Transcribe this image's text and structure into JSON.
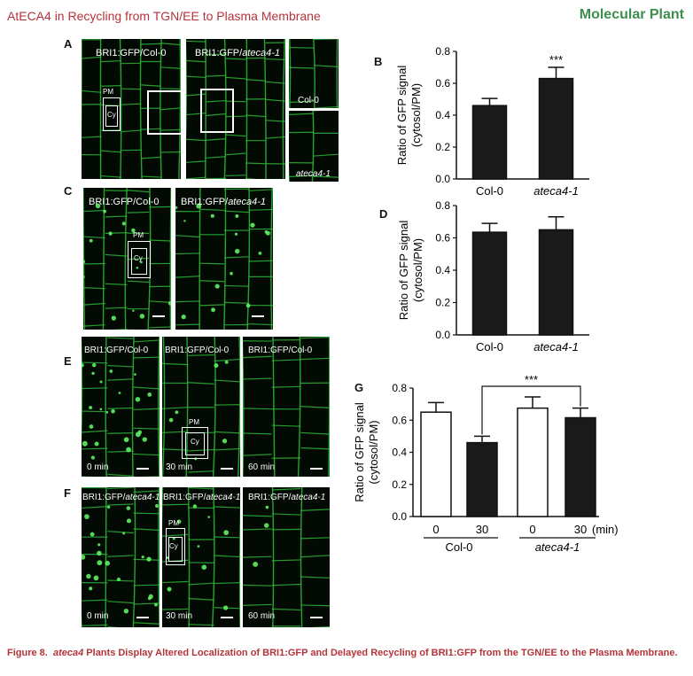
{
  "header": {
    "left": "AtECA4 in Recycling from TGN/EE to Plasma Membrane",
    "right": "Molecular Plant"
  },
  "panels": {
    "A": {
      "letter": "A",
      "left_label": "BRI1:GFP/Col-0",
      "right_label_prefix": "BRI1:GFP/",
      "right_label_italic": "ateca4-1",
      "pm": "PM",
      "cy": "Cy",
      "inset_top": "Col-0",
      "inset_bottom": "ateca4-1"
    },
    "C": {
      "letter": "C",
      "left_label": "BRI1:GFP/Col-0",
      "right_label_prefix": "BRI1:GFP/",
      "right_label_italic": "ateca4-1",
      "pm": "PM",
      "cy": "Cy"
    },
    "E": {
      "letter": "E",
      "labels": [
        "BRI1:GFP/Col-0",
        "BRI1:GFP/Col-0",
        "BRI1:GFP/Col-0"
      ],
      "times": [
        "0 min",
        "30 min",
        "60 min"
      ],
      "pm": "PM",
      "cy": "Cy"
    },
    "F": {
      "letter": "F",
      "label_prefix": "BRI1:GFP/",
      "label_italic": "ateca4-1",
      "times": [
        "0 min",
        "30 min",
        "60 min"
      ],
      "pm": "PM",
      "cy": "Cy"
    }
  },
  "chart_data": [
    {
      "panel": "B",
      "type": "bar",
      "categories": [
        "Col-0",
        "ateca4-1"
      ],
      "values": [
        0.46,
        0.63
      ],
      "errors": [
        0.045,
        0.07
      ],
      "ylabel_line1": "Ratio of GFP signal",
      "ylabel_line2": "(cytosol/PM)",
      "ylim": [
        0,
        0.8
      ],
      "yticks": [
        "0.0",
        "0.2",
        "0.4",
        "0.6",
        "0.8"
      ],
      "annotation": "***",
      "bar_color": "#1a1a1a"
    },
    {
      "panel": "D",
      "type": "bar",
      "categories": [
        "Col-0",
        "ateca4-1"
      ],
      "values": [
        0.635,
        0.65
      ],
      "errors": [
        0.055,
        0.08
      ],
      "ylabel_line1": "Ratio of GFP signal",
      "ylabel_line2": "(cytosol/PM)",
      "ylim": [
        0,
        0.8
      ],
      "yticks": [
        "0.0",
        "0.2",
        "0.4",
        "0.6",
        "0.8"
      ],
      "bar_color": "#1a1a1a"
    },
    {
      "panel": "G",
      "type": "bar",
      "x_ticks": [
        "0",
        "30",
        "0",
        "30"
      ],
      "x_unit": "(min)",
      "groups": [
        "Col-0",
        "ateca4-1"
      ],
      "values": [
        0.65,
        0.46,
        0.675,
        0.615
      ],
      "errors": [
        0.06,
        0.04,
        0.07,
        0.06
      ],
      "fills": [
        "#ffffff",
        "#1a1a1a",
        "#ffffff",
        "#1a1a1a"
      ],
      "ylabel_line1": "Ratio of GFP signal",
      "ylabel_line2": "(cytosol/PM)",
      "ylim": [
        0,
        0.8
      ],
      "yticks": [
        "0.0",
        "0.2",
        "0.4",
        "0.6",
        "0.8"
      ],
      "annotation": "***"
    }
  ],
  "caption": {
    "label": "Figure 8.",
    "italic": "ateca4",
    "text": "Plants Display Altered Localization of BRI1:GFP and Delayed Recycling of BRI1:GFP from the TGN/EE to the Plasma Membrane."
  },
  "colors": {
    "header_red": "#b5343a",
    "header_green": "#3e8e4e",
    "gfp_green": "#2fbf3a"
  }
}
